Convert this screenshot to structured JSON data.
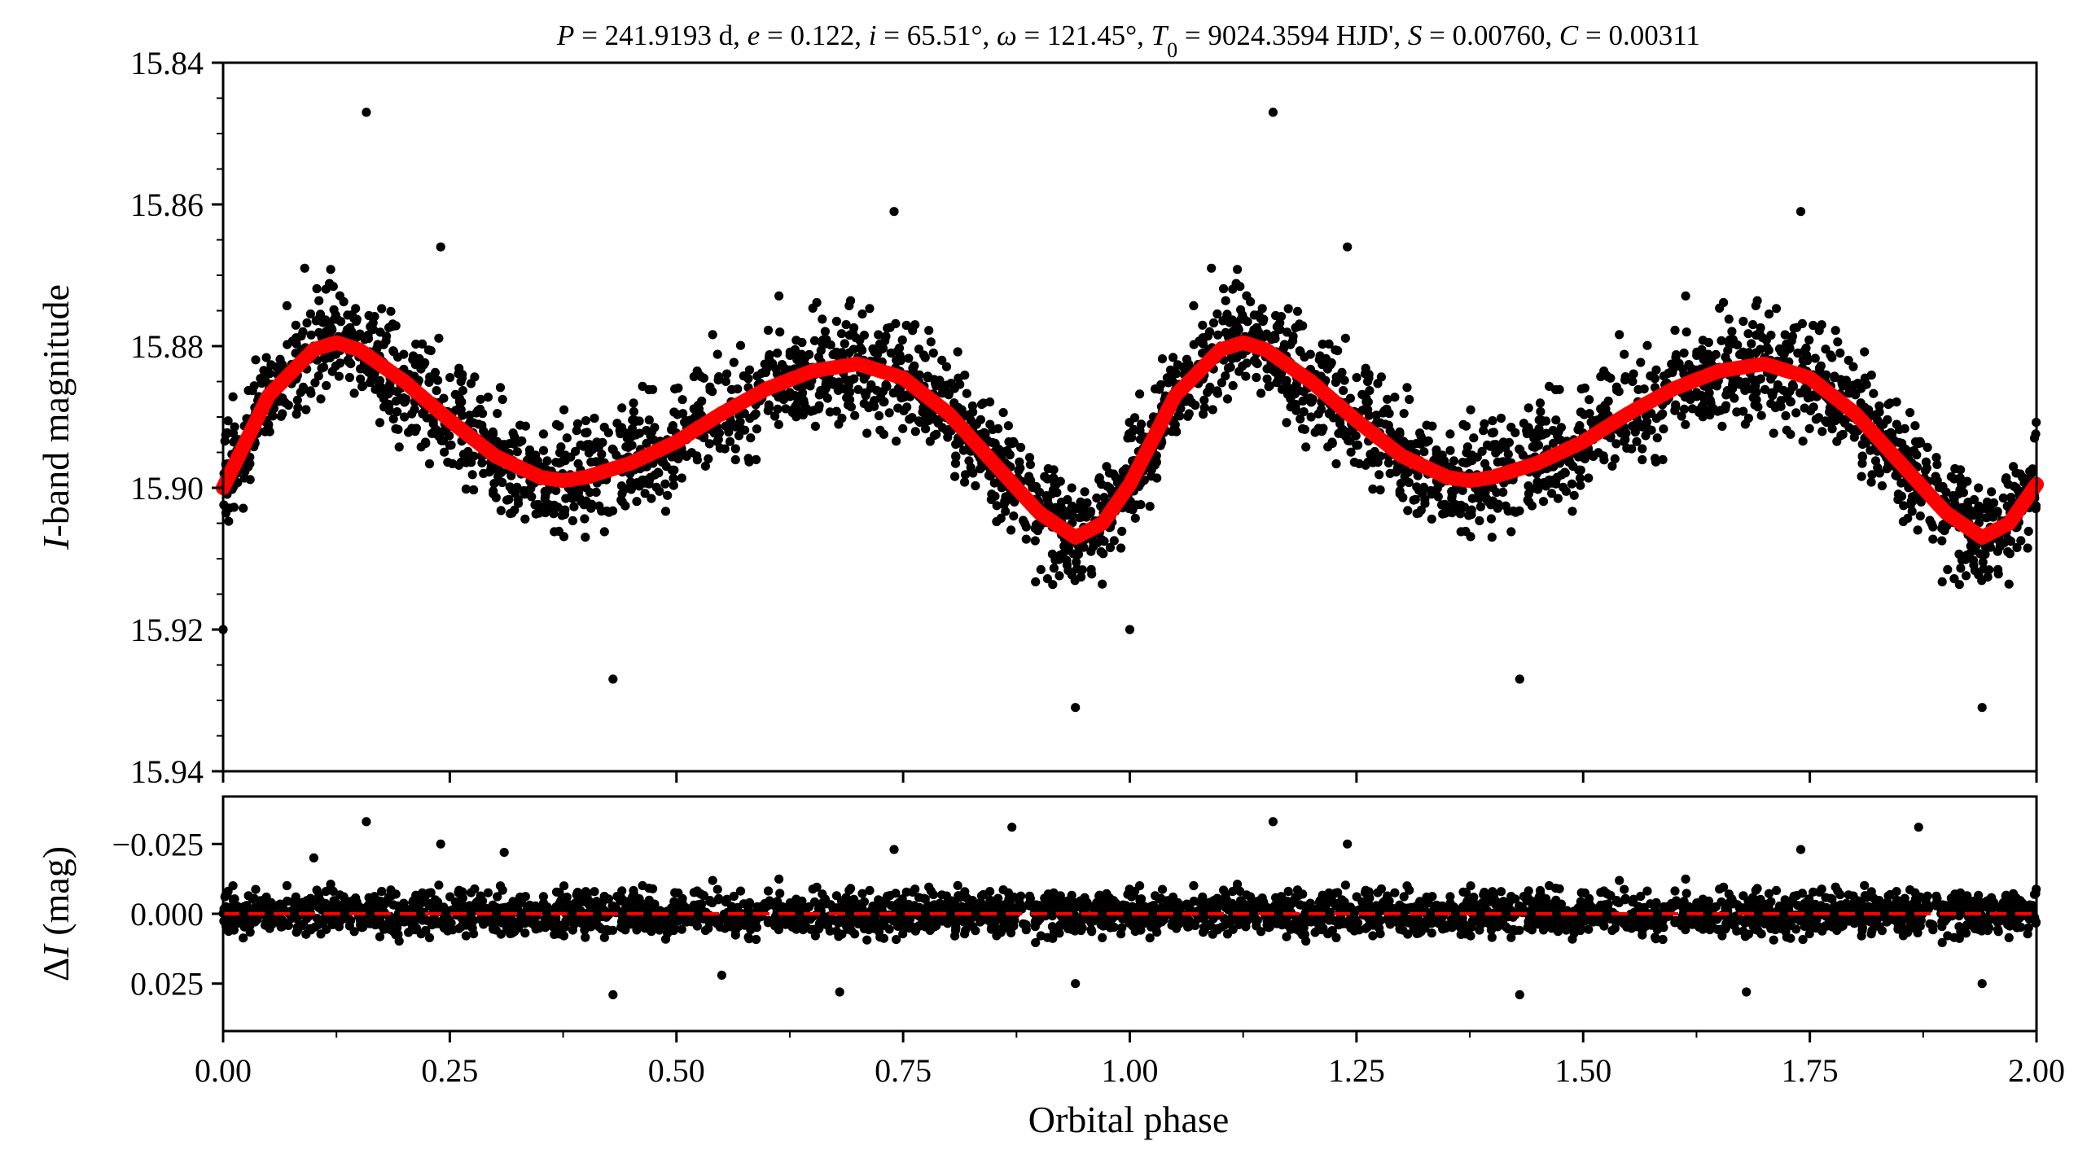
{
  "chart_data": [
    {
      "type": "scatter",
      "panel": "light-curve",
      "title": "P = 241.9193 d, e = 0.122, i = 65.51°, ω = 121.45°, T0 = 9024.3594 HJD', S = 0.00760, C = 0.00311",
      "title_parts": [
        {
          "text": "P",
          "style": "italic"
        },
        {
          "text": " = 241.9193 d, "
        },
        {
          "text": "e",
          "style": "italic"
        },
        {
          "text": " = 0.122, "
        },
        {
          "text": "i",
          "style": "italic"
        },
        {
          "text": " = 65.51°, "
        },
        {
          "text": "ω",
          "style": "italic"
        },
        {
          "text": " = 121.45°, "
        },
        {
          "text": "T",
          "style": "italic"
        },
        {
          "text": "0",
          "sub": true
        },
        {
          "text": " = 9024.3594 HJD', "
        },
        {
          "text": "S",
          "style": "italic"
        },
        {
          "text": " = 0.00760, "
        },
        {
          "text": "C",
          "style": "italic"
        },
        {
          "text": " = 0.00311"
        }
      ],
      "xlabel": "",
      "ylabel": "I-band magnitude",
      "ylabel_parts": [
        {
          "text": "I",
          "style": "italic"
        },
        {
          "text": "-band magnitude"
        }
      ],
      "xlim": [
        0.0,
        2.0
      ],
      "ylim": [
        15.94,
        15.84
      ],
      "y_inverted": true,
      "xticks": [
        0.0,
        0.25,
        0.5,
        0.75,
        1.0,
        1.25,
        1.5,
        1.75,
        2.0
      ],
      "yticks": [
        15.84,
        15.86,
        15.88,
        15.9,
        15.92,
        15.94
      ],
      "ytick_labels": [
        "15.84",
        "15.86",
        "15.88",
        "15.90",
        "15.92",
        "15.94"
      ],
      "grid": false,
      "series": [
        {
          "kind": "points",
          "color": "#000000",
          "description_of_shape": "phase-folded observations repeated over two cycles",
          "x": [
            0.0,
            0.02,
            0.04,
            0.06,
            0.08,
            0.1,
            0.12,
            0.14,
            0.16,
            0.18,
            0.2,
            0.25,
            0.3,
            0.35,
            0.4,
            0.45,
            0.5,
            0.55,
            0.6,
            0.65,
            0.7,
            0.75,
            0.8,
            0.85,
            0.9,
            0.94,
            0.98,
            1.0,
            1.02,
            1.04,
            1.06,
            1.08,
            1.1,
            1.12,
            1.14,
            1.16,
            1.18,
            1.2,
            1.25,
            1.3,
            1.35,
            1.4,
            1.45,
            1.5,
            1.55,
            1.6,
            1.65,
            1.7,
            1.75,
            1.8,
            1.85,
            1.9,
            1.94,
            1.98,
            2.0,
            0.158,
            1.158,
            0.09,
            1.09,
            0.24,
            1.24,
            0.74,
            1.74,
            0.43,
            1.43,
            0.94,
            1.94,
            0.0,
            1.0
          ],
          "y": [
            15.9,
            15.895,
            15.888,
            15.884,
            15.881,
            15.88,
            15.879,
            15.881,
            15.883,
            15.886,
            15.89,
            15.894,
            15.897,
            15.899,
            15.899,
            15.897,
            15.894,
            15.89,
            15.886,
            15.883,
            15.882,
            15.884,
            15.889,
            15.895,
            15.902,
            15.907,
            15.904,
            15.9,
            15.895,
            15.888,
            15.884,
            15.881,
            15.88,
            15.879,
            15.881,
            15.883,
            15.886,
            15.89,
            15.894,
            15.897,
            15.899,
            15.899,
            15.897,
            15.894,
            15.89,
            15.886,
            15.883,
            15.882,
            15.884,
            15.889,
            15.895,
            15.902,
            15.907,
            15.904,
            15.9,
            15.847,
            15.847,
            15.869,
            15.869,
            15.866,
            15.866,
            15.861,
            15.861,
            15.927,
            15.927,
            15.931,
            15.931,
            15.92,
            15.92
          ]
        },
        {
          "kind": "model-curve",
          "color": "#ff0000",
          "x": [
            0.0,
            0.05,
            0.1,
            0.125,
            0.15,
            0.2,
            0.25,
            0.3,
            0.35,
            0.375,
            0.4,
            0.45,
            0.5,
            0.55,
            0.6,
            0.65,
            0.7,
            0.75,
            0.8,
            0.85,
            0.9,
            0.94,
            0.97,
            1.0,
            1.05,
            1.1,
            1.125,
            1.15,
            1.2,
            1.25,
            1.3,
            1.35,
            1.375,
            1.4,
            1.45,
            1.5,
            1.55,
            1.6,
            1.65,
            1.7,
            1.75,
            1.8,
            1.85,
            1.9,
            1.94,
            1.97,
            2.0
          ],
          "y": [
            15.9,
            15.887,
            15.8805,
            15.8795,
            15.8805,
            15.885,
            15.8905,
            15.8955,
            15.8985,
            15.899,
            15.8985,
            15.8965,
            15.8935,
            15.8895,
            15.886,
            15.8835,
            15.8825,
            15.8845,
            15.8895,
            15.8965,
            15.9035,
            15.907,
            15.905,
            15.8995,
            15.887,
            15.8805,
            15.8795,
            15.8805,
            15.885,
            15.8905,
            15.8955,
            15.8985,
            15.899,
            15.8985,
            15.8965,
            15.8935,
            15.8895,
            15.886,
            15.8835,
            15.8825,
            15.8845,
            15.8895,
            15.8965,
            15.9035,
            15.907,
            15.905,
            15.8995
          ]
        }
      ]
    },
    {
      "type": "scatter",
      "panel": "residuals",
      "xlabel": "Orbital phase",
      "ylabel": "ΔI (mag)",
      "ylabel_parts": [
        {
          "text": "Δ"
        },
        {
          "text": "I",
          "style": "italic"
        },
        {
          "text": " (mag)"
        }
      ],
      "xlim": [
        0.0,
        2.0
      ],
      "ylim": [
        0.042,
        -0.042
      ],
      "y_inverted": true,
      "xticks": [
        0.0,
        0.25,
        0.5,
        0.75,
        1.0,
        1.25,
        1.5,
        1.75,
        2.0
      ],
      "xtick_labels": [
        "0.00",
        "0.25",
        "0.50",
        "0.75",
        "1.00",
        "1.25",
        "1.50",
        "1.75",
        "2.00"
      ],
      "yticks": [
        -0.025,
        0.0,
        0.025
      ],
      "ytick_labels": [
        "−0.025",
        "0.000",
        "0.025"
      ],
      "grid": false,
      "reference_line": {
        "y": 0.0,
        "color": "#ff0000",
        "style": "dashed"
      },
      "series": [
        {
          "kind": "points",
          "color": "#000000",
          "description_of_shape": "residuals scattered around zero, mostly within ±0.012 mag",
          "x": [
            0.158,
            1.158,
            0.24,
            1.24,
            0.31,
            0.74,
            1.74,
            0.87,
            1.87,
            0.43,
            1.43,
            0.68,
            1.68,
            0.94,
            1.94,
            0.1,
            0.55
          ],
          "y": [
            -0.033,
            -0.033,
            -0.025,
            -0.025,
            -0.022,
            -0.023,
            -0.023,
            -0.031,
            -0.031,
            0.029,
            0.029,
            0.028,
            0.028,
            0.025,
            0.025,
            -0.02,
            0.022
          ]
        }
      ]
    }
  ]
}
